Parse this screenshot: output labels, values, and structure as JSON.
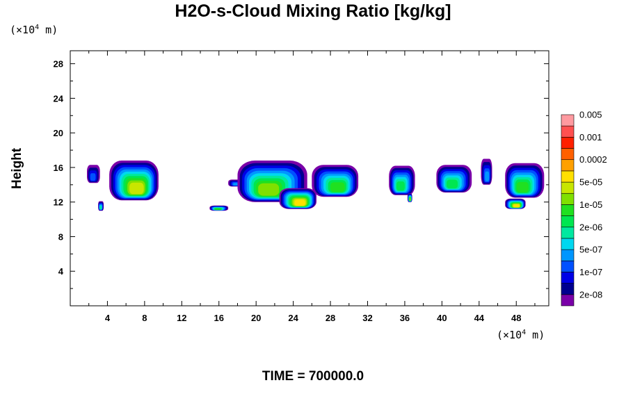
{
  "chart_data": {
    "type": "contour-filled",
    "title": "H2O-s-Cloud Mixing Ratio [kg/kg]",
    "ylabel": "Height",
    "x_unit": {
      "prefix": "(×10",
      "exp": "4",
      "suffix": " m)"
    },
    "y_unit": {
      "prefix": "(×10",
      "exp": "4",
      "suffix": " m)"
    },
    "xlim": [
      0,
      51.5
    ],
    "ylim": [
      0,
      29.5
    ],
    "x_ticks": [
      "4",
      "8",
      "12",
      "16",
      "20",
      "24",
      "28",
      "32",
      "36",
      "40",
      "44",
      "48"
    ],
    "x_tick_values": [
      4,
      8,
      12,
      16,
      20,
      24,
      28,
      32,
      36,
      40,
      44,
      48
    ],
    "y_ticks": [
      "4",
      "8",
      "12",
      "16",
      "20",
      "24",
      "28"
    ],
    "y_tick_values": [
      4,
      8,
      12,
      16,
      20,
      24,
      28
    ],
    "colorbar": {
      "colors": [
        "#7a00a8",
        "#00008f",
        "#0000e6",
        "#0050ff",
        "#0096ff",
        "#00d8f0",
        "#00e8a0",
        "#00e650",
        "#20e020",
        "#80e000",
        "#c8e600",
        "#ffe000",
        "#ffa000",
        "#ff6000",
        "#ff2000",
        "#ff5050",
        "#ff9aa0"
      ],
      "labels": [
        "2e-08",
        "1e-07",
        "5e-07",
        "2e-06",
        "1e-05",
        "5e-05",
        "0.0002",
        "0.001",
        "0.005"
      ]
    },
    "cloud_regions": [
      {
        "x": [
          1.8,
          3.2
        ],
        "y_base": 14.2,
        "y_top": 16.3,
        "peak": 3
      },
      {
        "x": [
          4.2,
          9.5
        ],
        "y_base": 12.2,
        "y_top": 16.8,
        "peak": 10
      },
      {
        "x": [
          3.0,
          3.6
        ],
        "y_base": 11.0,
        "y_top": 12.1,
        "peak": 6
      },
      {
        "x": [
          17.0,
          18.5
        ],
        "y_base": 13.8,
        "y_top": 14.6,
        "peak": 4
      },
      {
        "x": [
          18.0,
          25.5
        ],
        "y_base": 12.0,
        "y_top": 16.8,
        "peak": 9
      },
      {
        "x": [
          22.5,
          26.5
        ],
        "y_base": 11.2,
        "y_top": 13.6,
        "peak": 11
      },
      {
        "x": [
          15.0,
          17.0
        ],
        "y_base": 11.0,
        "y_top": 11.6,
        "peak": 8
      },
      {
        "x": [
          26.0,
          31.0
        ],
        "y_base": 12.6,
        "y_top": 16.3,
        "peak": 8
      },
      {
        "x": [
          34.3,
          37.1
        ],
        "y_base": 12.8,
        "y_top": 16.2,
        "peak": 7
      },
      {
        "x": [
          36.3,
          36.8
        ],
        "y_base": 12.0,
        "y_top": 13.0,
        "peak": 9
      },
      {
        "x": [
          39.4,
          43.2
        ],
        "y_base": 13.1,
        "y_top": 16.3,
        "peak": 7
      },
      {
        "x": [
          44.2,
          45.4
        ],
        "y_base": 14.0,
        "y_top": 17.0,
        "peak": 4
      },
      {
        "x": [
          46.8,
          51.0
        ],
        "y_base": 12.5,
        "y_top": 16.5,
        "peak": 8
      },
      {
        "x": [
          46.8,
          49.0
        ],
        "y_base": 11.2,
        "y_top": 12.4,
        "peak": 11
      }
    ]
  },
  "footer": {
    "time_label": "TIME = 700000.0"
  }
}
